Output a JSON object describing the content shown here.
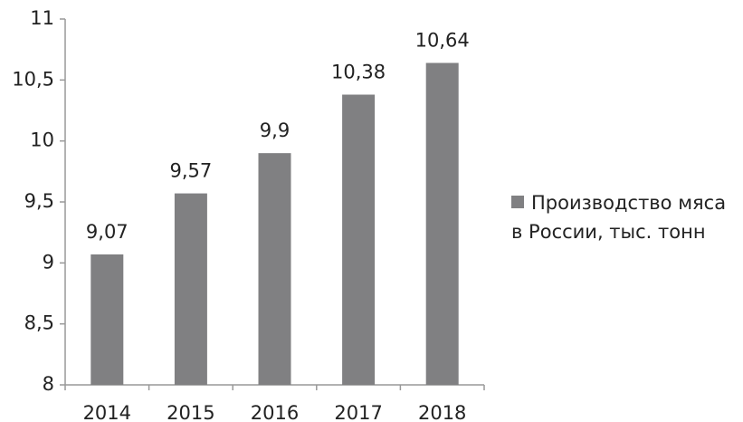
{
  "chart_data": {
    "type": "bar",
    "categories": [
      "2014",
      "2015",
      "2016",
      "2017",
      "2018"
    ],
    "series": [
      {
        "name": "Производство мяса в России, тыс. тонн",
        "color": "#808082",
        "values": [
          9.07,
          9.57,
          9.9,
          10.38,
          10.64
        ],
        "value_labels": [
          "9,07",
          "9,57",
          "9,9",
          "10,38",
          "10,64"
        ]
      }
    ],
    "ylim": [
      8,
      11
    ],
    "yticks": [
      8,
      {
        "value": 8.5,
        "label": "8,5"
      },
      9,
      {
        "value": 9.5,
        "label": "9,5"
      },
      10,
      {
        "value": 10.5,
        "label": "10,5"
      },
      11
    ],
    "grid": false,
    "legend": "right"
  }
}
